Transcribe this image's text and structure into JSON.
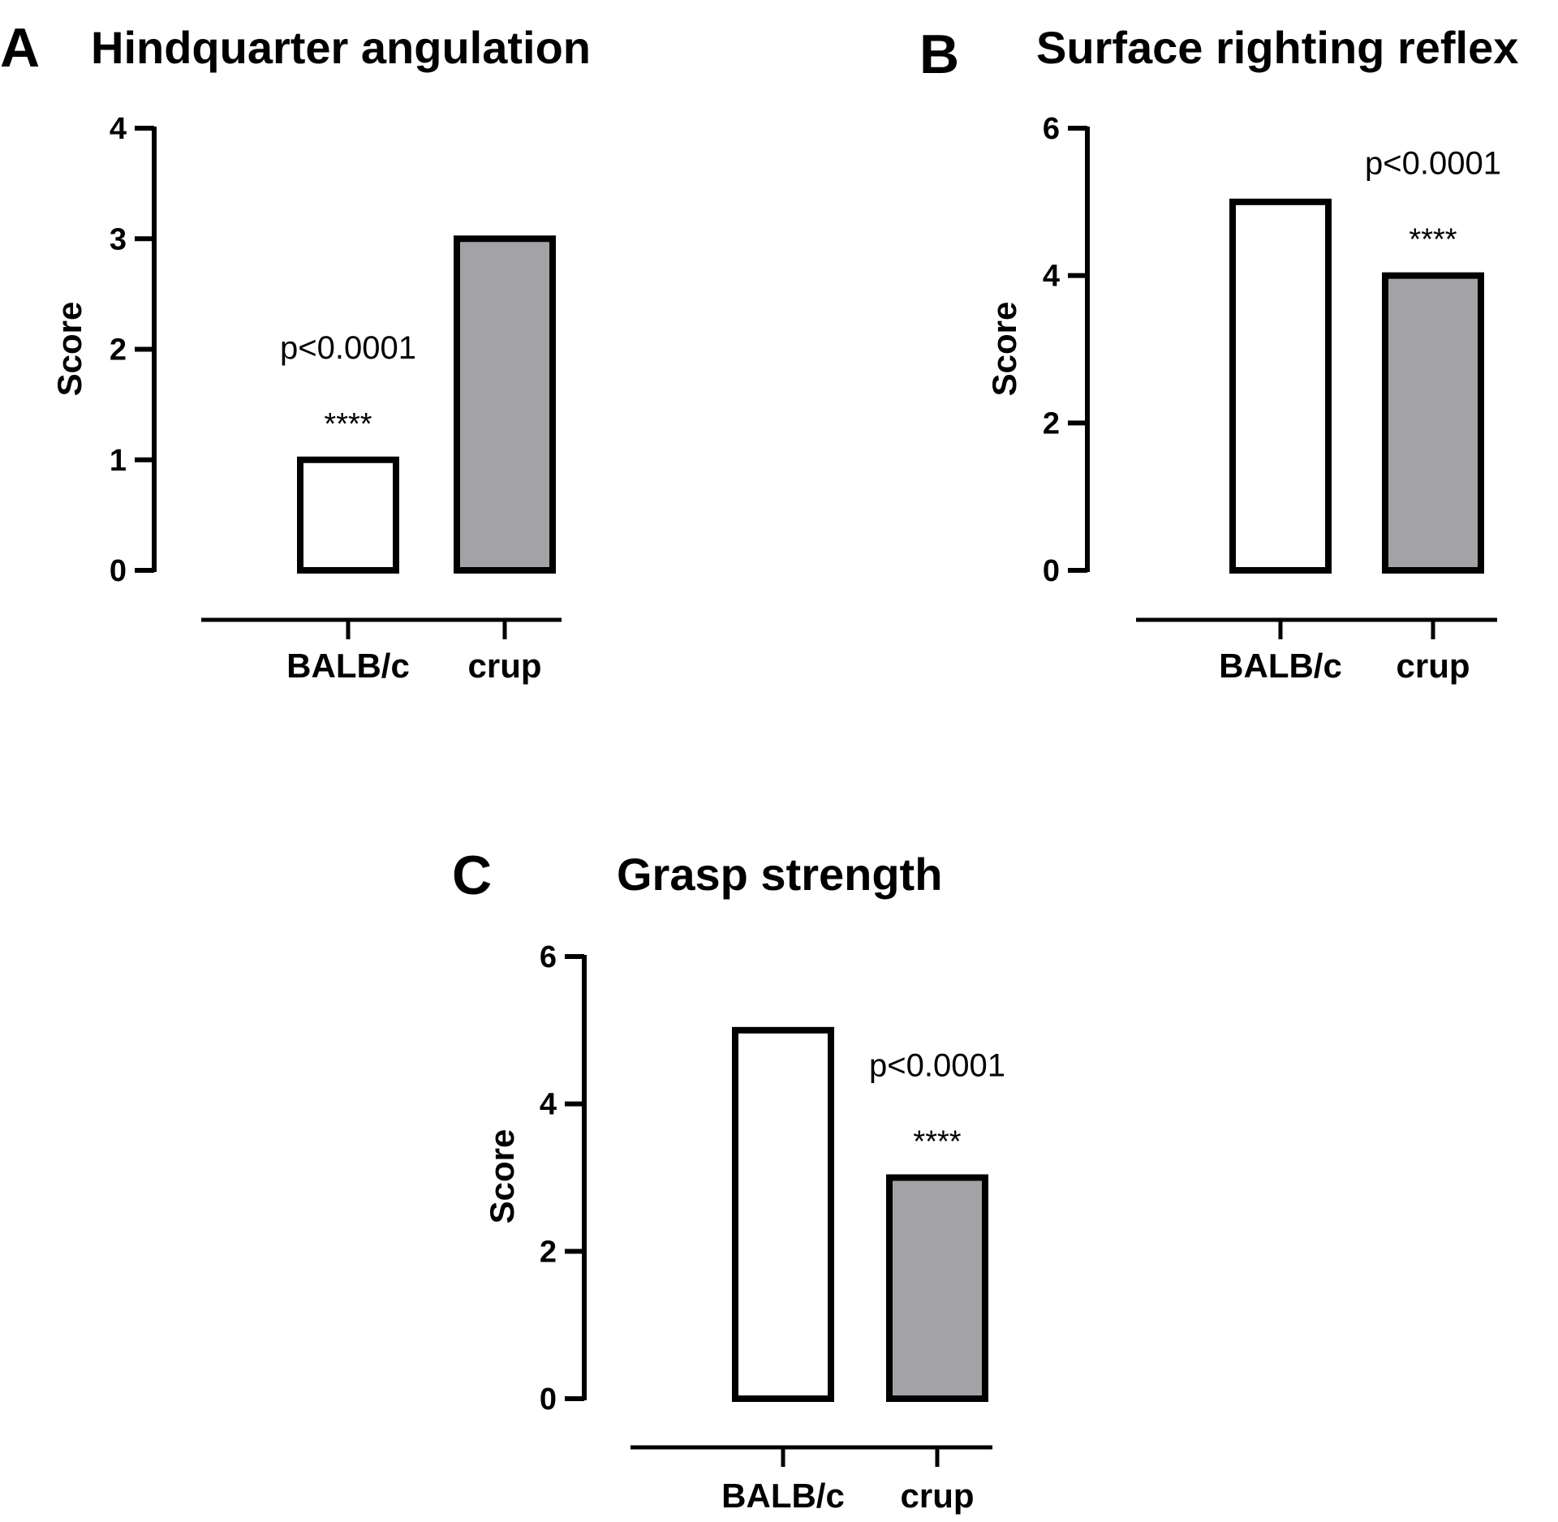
{
  "chart_data": [
    {
      "type": "bar",
      "panel": "A",
      "title": "Hindquarter angulation",
      "ylabel": "Score",
      "xlabel": "",
      "categories": [
        "BALB/c",
        "crup"
      ],
      "values": [
        1,
        3
      ],
      "ylim": [
        0,
        4
      ],
      "yticks": [
        0,
        1,
        2,
        3,
        4
      ],
      "bar_colors": [
        "#ffffff",
        "#a3a2a6"
      ],
      "annotation": {
        "category": "BALB/c",
        "pvalue": "p<0.0001",
        "stars": "****"
      }
    },
    {
      "type": "bar",
      "panel": "B",
      "title": "Surface righting reflex",
      "ylabel": "Score",
      "xlabel": "",
      "categories": [
        "BALB/c",
        "crup"
      ],
      "values": [
        5,
        4
      ],
      "ylim": [
        0,
        6
      ],
      "yticks": [
        0,
        2,
        4,
        6
      ],
      "bar_colors": [
        "#ffffff",
        "#a3a2a6"
      ],
      "annotation": {
        "category": "crup",
        "pvalue": "p<0.0001",
        "stars": "****"
      }
    },
    {
      "type": "bar",
      "panel": "C",
      "title": "Grasp strength",
      "ylabel": "Score",
      "xlabel": "",
      "categories": [
        "BALB/c",
        "crup"
      ],
      "values": [
        5,
        3
      ],
      "ylim": [
        0,
        6
      ],
      "yticks": [
        0,
        2,
        4,
        6
      ],
      "bar_colors": [
        "#ffffff",
        "#a3a2a6"
      ],
      "annotation": {
        "category": "crup",
        "pvalue": "p<0.0001",
        "stars": "****"
      }
    }
  ]
}
